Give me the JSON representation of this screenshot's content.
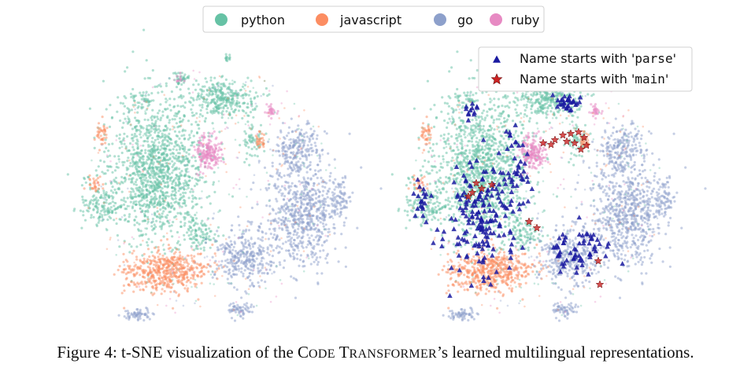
{
  "chart_data": {
    "type": "scatter",
    "title": "",
    "panels": [
      {
        "name": "left",
        "highlights": false
      },
      {
        "name": "right",
        "highlights": true
      }
    ],
    "series": [
      {
        "name": "python",
        "color": "#66c2a5"
      },
      {
        "name": "javascript",
        "color": "#fc8d62"
      },
      {
        "name": "go",
        "color": "#8da0cb"
      },
      {
        "name": "ruby",
        "color": "#e78ac3"
      }
    ],
    "highlights": [
      {
        "label_prefix": "Name starts with '",
        "label_code": "parse",
        "label_suffix": "'",
        "marker": "triangle",
        "color": "#1a1aa0"
      },
      {
        "label_prefix": "Name starts with '",
        "label_code": "main",
        "label_suffix": "'",
        "marker": "star",
        "color": "#cc2222"
      }
    ],
    "legend_position": "top-center",
    "highlight_legend_position": "top-right",
    "axes": "none"
  },
  "caption": {
    "prefix": "Figure 4: t-SNE visualization of the ",
    "c": "C",
    "ode": "ODE",
    "t": "T",
    "ransformer": "RANSFORMER",
    "suffix": "’s learned multilingual representations."
  }
}
